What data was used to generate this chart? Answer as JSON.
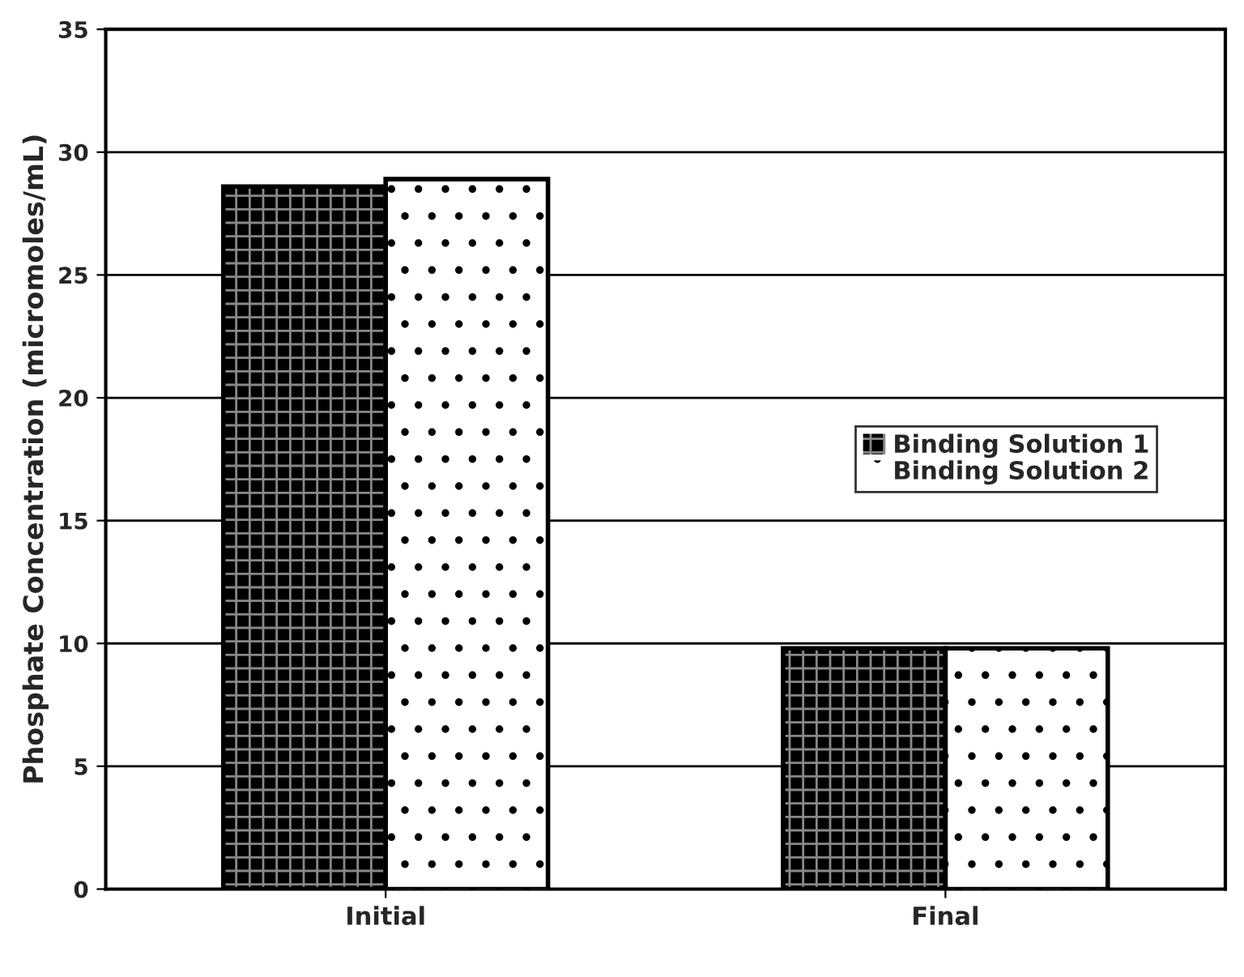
{
  "chart_data": {
    "type": "bar",
    "ylabel": "Phosphate Concentration (micromoles/mL)",
    "categories": [
      "Initial",
      "Final"
    ],
    "series": [
      {
        "name": "Binding Solution 1",
        "color": "#000000",
        "values": [
          28.6,
          9.8
        ]
      },
      {
        "name": "Binding Solution 2",
        "color": "#ffffff",
        "values": [
          28.9,
          9.8
        ]
      }
    ],
    "ylim": [
      0,
      35
    ],
    "yticks": [
      0,
      5,
      10,
      15,
      20,
      25,
      30,
      35
    ],
    "grid": "y",
    "legend": "center right"
  }
}
